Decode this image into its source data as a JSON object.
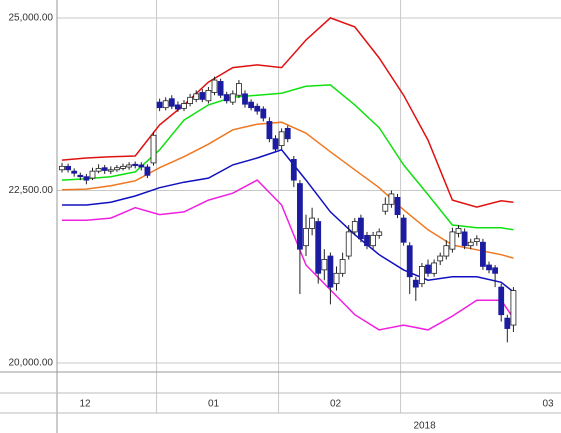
{
  "chart_data": {
    "type": "candlestick",
    "ylim": [
      19870,
      25260
    ],
    "yticks": [
      {
        "value": 20000,
        "label": "20,000.00"
      },
      {
        "value": 22500,
        "label": "22,500.00"
      },
      {
        "value": 25000,
        "label": "25,000.00"
      }
    ],
    "xlim": [
      -0.82,
      81.8
    ],
    "xticks": [
      15.5,
      35.5,
      55.5
    ],
    "x_labels": [
      "12",
      "01",
      "02",
      "03"
    ],
    "year_label": "2018",
    "grid": true,
    "up_color": "#ffffff",
    "down_color": "#1c1ca0",
    "open": [
      22800,
      22850,
      22780,
      22720,
      22700,
      22680,
      22780,
      22830,
      22780,
      22800,
      22820,
      22840,
      22880,
      22870,
      22840,
      22900,
      23780,
      23700,
      23830,
      23740,
      23690,
      23760,
      23820,
      23920,
      23800,
      23920,
      24080,
      23890,
      23780,
      23880,
      23900,
      23780,
      23720,
      23680,
      23500,
      23250,
      23150,
      23400,
      22950,
      22600,
      21700,
      21950,
      22050,
      21350,
      21550,
      21150,
      21300,
      21550,
      21900,
      22100,
      21850,
      21700,
      21850,
      22200,
      22300,
      22400,
      22100,
      21700,
      21200,
      21150,
      21420,
      21300,
      21480,
      21550,
      21650,
      21880,
      21900,
      21700,
      21760,
      21750,
      21420,
      21380,
      21100,
      20650,
      20550
    ],
    "high": [
      22900,
      22890,
      22820,
      22760,
      22740,
      22830,
      22880,
      22870,
      22850,
      22870,
      22890,
      22910,
      22920,
      22910,
      22880,
      23350,
      23830,
      23850,
      23880,
      23790,
      23810,
      23900,
      23950,
      23970,
      24000,
      24150,
      24120,
      23930,
      23950,
      24100,
      23950,
      23820,
      23760,
      23720,
      23560,
      23300,
      23400,
      23440,
      23000,
      22650,
      22150,
      22250,
      22100,
      21650,
      21600,
      21400,
      21600,
      22000,
      22100,
      22150,
      21900,
      21900,
      21950,
      22400,
      22500,
      22450,
      22150,
      21750,
      21250,
      21450,
      21500,
      21500,
      21600,
      21780,
      21960,
      22000,
      21950,
      21800,
      21850,
      21800,
      21470,
      21420,
      21150,
      20700,
      21100
    ],
    "low": [
      22760,
      22760,
      22700,
      22650,
      22590,
      22650,
      22750,
      22740,
      22740,
      22770,
      22790,
      22800,
      22820,
      22790,
      22680,
      22860,
      23650,
      23660,
      23680,
      23640,
      23650,
      23720,
      23780,
      23780,
      23760,
      23880,
      23840,
      23760,
      23740,
      23840,
      23700,
      23660,
      23600,
      23500,
      23200,
      23050,
      23100,
      23200,
      22550,
      21000,
      21550,
      21850,
      21150,
      21200,
      20850,
      21050,
      21250,
      21500,
      21850,
      21750,
      21650,
      21650,
      21800,
      22150,
      22250,
      22100,
      21700,
      21000,
      20900,
      21100,
      21250,
      21250,
      21420,
      21500,
      21600,
      21820,
      21650,
      21650,
      21700,
      21350,
      21300,
      21100,
      20600,
      20300,
      20450
    ],
    "close": [
      22850,
      22800,
      22750,
      22700,
      22650,
      22780,
      22820,
      22790,
      22800,
      22830,
      22850,
      22870,
      22860,
      22840,
      22720,
      23300,
      23700,
      23800,
      23720,
      23680,
      23760,
      23850,
      23900,
      23820,
      23950,
      24100,
      23880,
      23800,
      23900,
      24050,
      23750,
      23700,
      23650,
      23550,
      23250,
      23100,
      23350,
      23250,
      22650,
      21650,
      21950,
      22100,
      21300,
      21500,
      21100,
      21300,
      21500,
      21900,
      22050,
      21800,
      21700,
      21850,
      21900,
      22300,
      22450,
      22150,
      21750,
      21250,
      21100,
      21400,
      21300,
      21450,
      21550,
      21700,
      21900,
      21950,
      21700,
      21750,
      21800,
      21400,
      21350,
      21300,
      20700,
      20500,
      21050
    ],
    "band_x": [
      0,
      4,
      8,
      12,
      16,
      20,
      24,
      28,
      32,
      36,
      40,
      44,
      48,
      52,
      56,
      60,
      64,
      68,
      72,
      74
    ],
    "series": [
      {
        "color": "#e01010",
        "values": [
          22940,
          22970,
          22990,
          23000,
          23450,
          23740,
          24070,
          24280,
          24320,
          24280,
          24680,
          25000,
          24870,
          24420,
          23880,
          23230,
          22360,
          22260,
          22350,
          22330
        ]
      },
      {
        "color": "#10e010",
        "values": [
          22650,
          22670,
          22700,
          22770,
          23090,
          23520,
          23740,
          23850,
          23880,
          23910,
          24010,
          24030,
          23740,
          23410,
          22870,
          22440,
          22000,
          21960,
          21960,
          21930
        ]
      },
      {
        "color": "#f07820",
        "values": [
          22510,
          22520,
          22570,
          22640,
          22830,
          22990,
          23170,
          23380,
          23460,
          23490,
          23330,
          23060,
          22800,
          22540,
          22220,
          21930,
          21710,
          21640,
          21570,
          21520
        ]
      },
      {
        "color": "#1010c0",
        "values": [
          22290,
          22290,
          22330,
          22420,
          22540,
          22620,
          22680,
          22870,
          22970,
          23090,
          22650,
          22190,
          21860,
          21570,
          21350,
          21200,
          21250,
          21250,
          21170,
          21030
        ]
      },
      {
        "color": "#f020e0",
        "values": [
          22070,
          22070,
          22100,
          22250,
          22150,
          22190,
          22360,
          22460,
          22650,
          22290,
          21420,
          21060,
          20700,
          20480,
          20550,
          20480,
          20680,
          20910,
          20910,
          20650
        ]
      }
    ]
  }
}
